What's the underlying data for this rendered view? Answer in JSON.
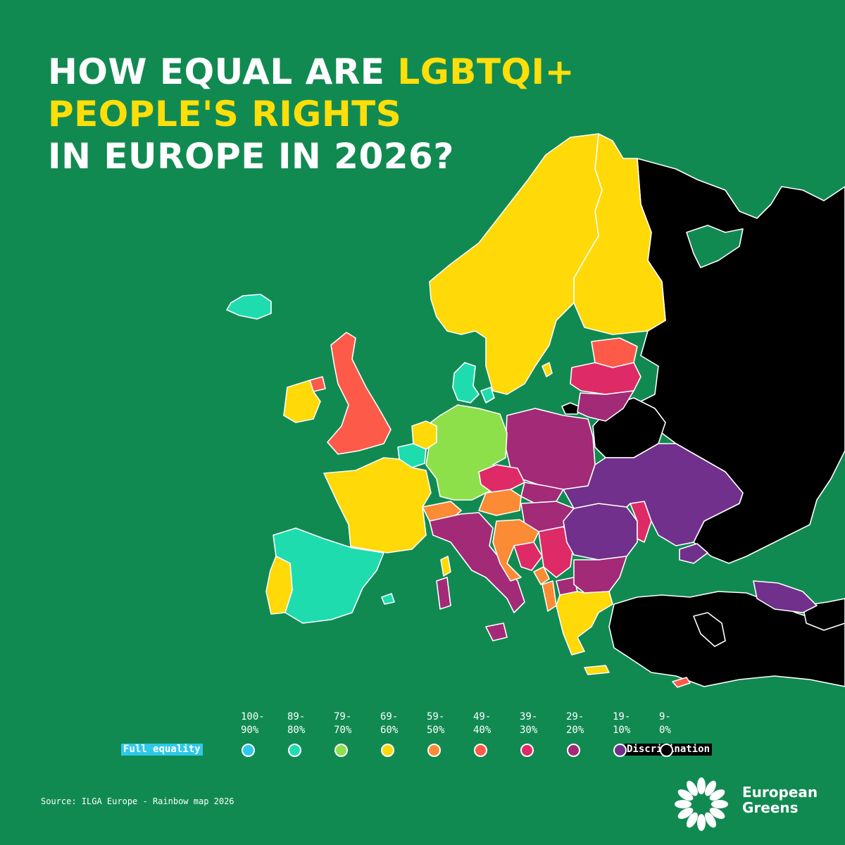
{
  "title": {
    "line1_white": "HOW EQUAL ARE ",
    "line1_yellow": "LGBTQI+",
    "line2_yellow": "PEOPLE'S RIGHTS",
    "line3_white": "IN EUROPE IN 2026?"
  },
  "legend": {
    "full_label": "Full equality",
    "disc_label": "Discrimination",
    "bins": [
      {
        "range": "100-\n90%",
        "color": "#2ec9e8"
      },
      {
        "range": "89-\n80%",
        "color": "#1fdcae"
      },
      {
        "range": "79-\n70%",
        "color": "#8ee04a"
      },
      {
        "range": "69-\n60%",
        "color": "#ffd908"
      },
      {
        "range": "59-\n50%",
        "color": "#fb8b35"
      },
      {
        "range": "49-\n40%",
        "color": "#fd5a4a"
      },
      {
        "range": "39-\n30%",
        "color": "#de2a66"
      },
      {
        "range": "29-\n20%",
        "color": "#a22a77"
      },
      {
        "range": "19-\n10%",
        "color": "#71308b"
      },
      {
        "range": "9-\n0%",
        "color": "#000000"
      }
    ]
  },
  "source": "Source: ILGA Europe - Rainbow map 2026",
  "logo": {
    "line1": "European",
    "line2": "Greens"
  },
  "colors": {
    "background": "#118a52",
    "title_highlight": "#ffde0a",
    "border": "#ffffff"
  }
}
